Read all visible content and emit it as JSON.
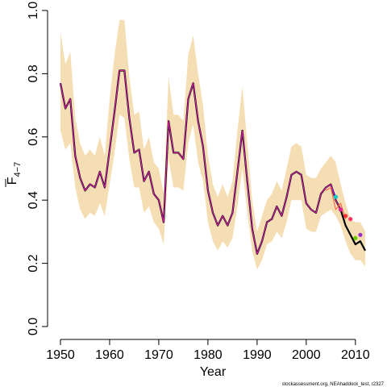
{
  "chart_data": {
    "type": "line",
    "xlabel": "Year",
    "ylabel_main": "F",
    "ylabel_sub": "4−7",
    "xlim": [
      1950,
      2012
    ],
    "ylim": [
      0.0,
      1.0
    ],
    "x_ticks": [
      1950,
      1960,
      1970,
      1980,
      1990,
      2000,
      2010
    ],
    "y_ticks": [
      0.0,
      0.2,
      0.4,
      0.6,
      0.8,
      1.0
    ],
    "y_tick_labels": [
      "0.0",
      "0.2",
      "0.4",
      "0.6",
      "0.8",
      "1.0"
    ],
    "band_color": "#f5deb3",
    "footnote": "stockassessment.org, NEAhaddock_test, r2327",
    "band": {
      "x": [
        1950,
        1951,
        1952,
        1953,
        1954,
        1955,
        1956,
        1957,
        1958,
        1959,
        1960,
        1961,
        1962,
        1963,
        1964,
        1965,
        1966,
        1967,
        1968,
        1969,
        1970,
        1971,
        1972,
        1973,
        1974,
        1975,
        1976,
        1977,
        1978,
        1979,
        1980,
        1981,
        1982,
        1983,
        1984,
        1985,
        1986,
        1987,
        1988,
        1989,
        1990,
        1991,
        1992,
        1993,
        1994,
        1995,
        1996,
        1997,
        1998,
        1999,
        2000,
        2001,
        2002,
        2003,
        2004,
        2005,
        2006
      ],
      "lower": [
        0.62,
        0.56,
        0.58,
        0.44,
        0.37,
        0.34,
        0.36,
        0.35,
        0.39,
        0.35,
        0.45,
        0.55,
        0.67,
        0.66,
        0.53,
        0.44,
        0.44,
        0.36,
        0.38,
        0.33,
        0.31,
        0.26,
        0.53,
        0.44,
        0.44,
        0.43,
        0.58,
        0.64,
        0.52,
        0.46,
        0.33,
        0.27,
        0.24,
        0.27,
        0.25,
        0.28,
        0.38,
        0.5,
        0.36,
        0.24,
        0.18,
        0.21,
        0.26,
        0.27,
        0.3,
        0.28,
        0.33,
        0.4,
        0.4,
        0.4,
        0.31,
        0.3,
        0.3,
        0.35,
        0.36,
        0.37,
        0.35
      ],
      "upper": [
        0.93,
        0.83,
        0.87,
        0.66,
        0.58,
        0.54,
        0.56,
        0.54,
        0.6,
        0.54,
        0.72,
        0.86,
        0.97,
        0.97,
        0.79,
        0.67,
        0.68,
        0.56,
        0.6,
        0.52,
        0.5,
        0.42,
        0.79,
        0.67,
        0.67,
        0.65,
        0.86,
        0.92,
        0.8,
        0.7,
        0.54,
        0.45,
        0.41,
        0.45,
        0.41,
        0.46,
        0.62,
        0.76,
        0.58,
        0.4,
        0.3,
        0.35,
        0.4,
        0.42,
        0.46,
        0.43,
        0.5,
        0.57,
        0.58,
        0.57,
        0.48,
        0.47,
        0.47,
        0.5,
        0.52,
        0.54,
        0.52
      ]
    },
    "band_tail": {
      "x": [
        2006,
        2007,
        2008,
        2009,
        2010,
        2011,
        2012
      ],
      "lower": [
        0.35,
        0.32,
        0.27,
        0.23,
        0.21,
        0.21,
        0.19
      ],
      "upper": [
        0.52,
        0.45,
        0.39,
        0.34,
        0.33,
        0.33,
        0.3
      ]
    },
    "series": [
      {
        "color": "#000000",
        "x": [
          1950,
          1951,
          1952,
          1953,
          1954,
          1955,
          1956,
          1957,
          1958,
          1959,
          1960,
          1961,
          1962,
          1963,
          1964,
          1965,
          1966,
          1967,
          1968,
          1969,
          1970,
          1971,
          1972,
          1973,
          1974,
          1975,
          1976,
          1977,
          1978,
          1979,
          1980,
          1981,
          1982,
          1983,
          1984,
          1985,
          1986,
          1987,
          1988,
          1989,
          1990,
          1991,
          1992,
          1993,
          1994,
          1995,
          1996,
          1997,
          1998,
          1999,
          2000,
          2001,
          2002,
          2003,
          2004,
          2005,
          2006,
          2007,
          2008,
          2009,
          2010,
          2011,
          2012
        ],
        "values": [
          0.77,
          0.69,
          0.72,
          0.54,
          0.47,
          0.43,
          0.45,
          0.44,
          0.49,
          0.44,
          0.56,
          0.68,
          0.81,
          0.81,
          0.66,
          0.55,
          0.56,
          0.46,
          0.49,
          0.42,
          0.4,
          0.33,
          0.65,
          0.55,
          0.55,
          0.53,
          0.72,
          0.77,
          0.65,
          0.57,
          0.43,
          0.36,
          0.32,
          0.35,
          0.32,
          0.36,
          0.49,
          0.62,
          0.46,
          0.31,
          0.23,
          0.27,
          0.33,
          0.34,
          0.38,
          0.35,
          0.41,
          0.48,
          0.49,
          0.48,
          0.39,
          0.37,
          0.36,
          0.42,
          0.44,
          0.45,
          0.4,
          0.37,
          0.32,
          0.29,
          0.26,
          0.27,
          0.24
        ]
      },
      {
        "color": "#0000cd",
        "x": [
          1950,
          1951,
          1952,
          1953,
          1954,
          1955,
          1956,
          1957,
          1958,
          1959,
          1960,
          1961,
          1962,
          1963,
          1964,
          1965,
          1966,
          1967,
          1968,
          1969,
          1970,
          1971,
          1972,
          1973,
          1974,
          1975,
          1976,
          1977,
          1978,
          1979,
          1980,
          1981,
          1982,
          1983,
          1984,
          1985,
          1986,
          1987,
          1988,
          1989,
          1990,
          1991,
          1992,
          1993,
          1994,
          1995,
          1996,
          1997,
          1998,
          1999,
          2000,
          2001,
          2002,
          2003,
          2004,
          2005,
          2006
        ],
        "values": [
          0.77,
          0.69,
          0.72,
          0.54,
          0.47,
          0.43,
          0.45,
          0.44,
          0.49,
          0.44,
          0.56,
          0.68,
          0.81,
          0.81,
          0.66,
          0.55,
          0.56,
          0.46,
          0.49,
          0.42,
          0.4,
          0.33,
          0.65,
          0.55,
          0.55,
          0.53,
          0.72,
          0.77,
          0.65,
          0.57,
          0.43,
          0.36,
          0.32,
          0.35,
          0.32,
          0.36,
          0.49,
          0.62,
          0.46,
          0.31,
          0.23,
          0.27,
          0.33,
          0.34,
          0.38,
          0.35,
          0.41,
          0.48,
          0.49,
          0.48,
          0.39,
          0.37,
          0.36,
          0.42,
          0.44,
          0.45,
          0.41
        ]
      },
      {
        "color": "#e0209a",
        "x": [
          1950,
          1951,
          1952,
          1953,
          1954,
          1955,
          1956,
          1957,
          1958,
          1959,
          1960,
          1961,
          1962,
          1963,
          1964,
          1965,
          1966,
          1967,
          1968,
          1969,
          1970,
          1971,
          1972,
          1973,
          1974,
          1975,
          1976,
          1977,
          1978,
          1979,
          1980,
          1981,
          1982,
          1983,
          1984,
          1985,
          1986,
          1987,
          1988,
          1989,
          1990,
          1991,
          1992,
          1993,
          1994,
          1995,
          1996,
          1997,
          1998,
          1999,
          2000,
          2001,
          2002,
          2003,
          2004,
          2005,
          2006,
          2007
        ],
        "values": [
          0.77,
          0.69,
          0.72,
          0.54,
          0.47,
          0.43,
          0.45,
          0.44,
          0.49,
          0.44,
          0.56,
          0.68,
          0.81,
          0.81,
          0.66,
          0.55,
          0.56,
          0.46,
          0.49,
          0.42,
          0.4,
          0.33,
          0.65,
          0.55,
          0.55,
          0.53,
          0.72,
          0.77,
          0.65,
          0.57,
          0.43,
          0.36,
          0.32,
          0.35,
          0.32,
          0.36,
          0.49,
          0.62,
          0.46,
          0.31,
          0.23,
          0.27,
          0.33,
          0.34,
          0.38,
          0.35,
          0.41,
          0.48,
          0.49,
          0.48,
          0.39,
          0.37,
          0.36,
          0.42,
          0.44,
          0.45,
          0.4,
          0.37
        ]
      },
      {
        "color": "#ff6347",
        "x": [
          2004,
          2005,
          2006,
          2007,
          2008
        ],
        "values": [
          0.43,
          0.44,
          0.37,
          0.39,
          0.34
        ]
      }
    ],
    "endpoints": [
      {
        "x": 2006,
        "y": 0.41,
        "color": "#00cdcd"
      },
      {
        "x": 2007,
        "y": 0.37,
        "color": "#e0209a"
      },
      {
        "x": 2008,
        "y": 0.35,
        "color": "#ff3030"
      },
      {
        "x": 2009,
        "y": 0.34,
        "color": "#ff3366"
      },
      {
        "x": 2010,
        "y": 0.28,
        "color": "#66cd00"
      },
      {
        "x": 2011,
        "y": 0.29,
        "color": "#9932cc"
      }
    ]
  }
}
